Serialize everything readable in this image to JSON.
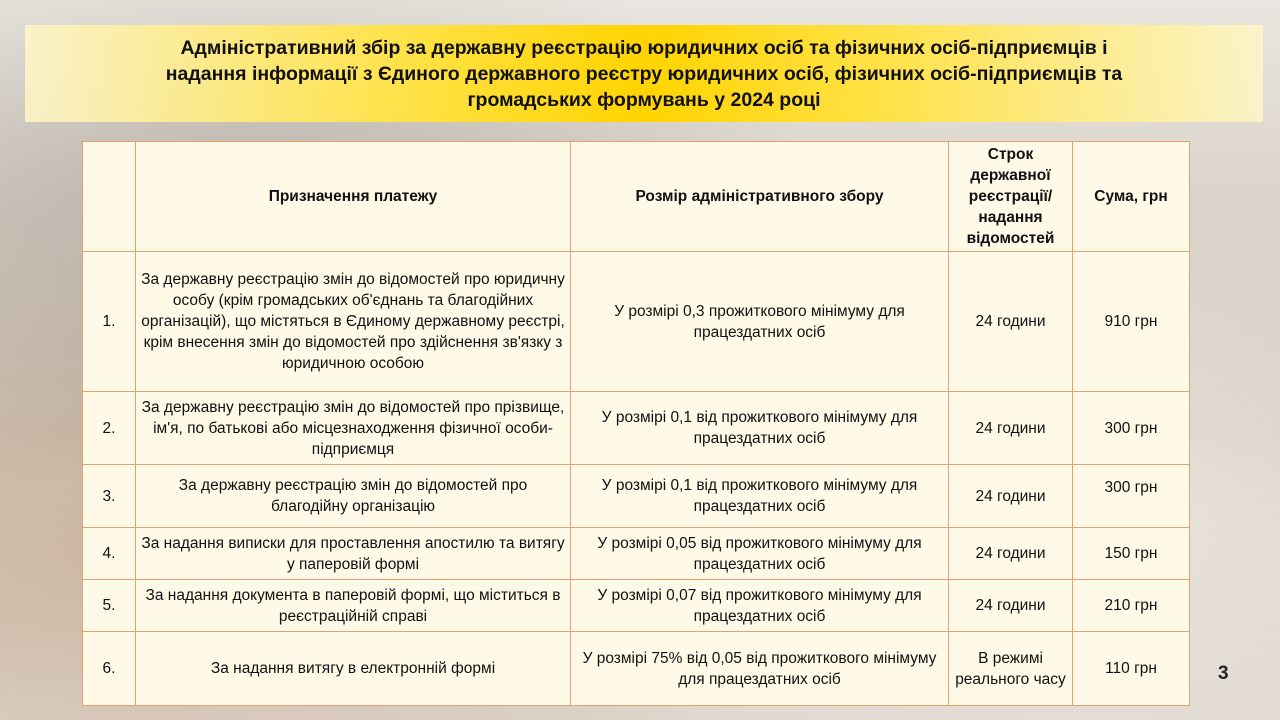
{
  "title_lines": [
    "Адміністративний збір за державну реєстрацію юридичних осіб та фізичних осіб-підприємців і",
    "надання інформації з Єдиного державного реєстру юридичних осіб, фізичних осіб-підприємців та",
    "громадських формувань у  2024 році"
  ],
  "table": {
    "headers": [
      "",
      "Призначення платежу",
      "Розмір адміністративного збору",
      "Строк державної реєстрації/ надання відомостей",
      "Сума, грн"
    ],
    "rows": [
      [
        "1.",
        "За державну реєстрацію змін до відомостей про юридичну особу (крім громадських об'єднань та благодійних організацій), що містяться в Єдиному державному реєстрі, крім внесення змін до відомостей про здійснення зв'язку з юридичною особою",
        "У розмірі 0,3 прожиткового мінімуму для працездатних осіб",
        "24 години",
        "910 грн"
      ],
      [
        "2.",
        "За державну реєстрацію змін до відомостей про прізвище, ім'я, по батькові або місцезнаходження фізичної особи-підприємця",
        "У розмірі 0,1 від прожиткового мінімуму для працездатних осіб",
        "24 години",
        "300 грн"
      ],
      [
        "3.",
        "За державну реєстрацію змін до відомостей про благодійну організацію",
        "У розмірі 0,1 від прожиткового мінімуму для працездатних осіб",
        "24 години",
        "300 грн"
      ],
      [
        "4.",
        "За надання виписки для проставлення апостилю та витягу у паперовій формі",
        "У розмірі 0,05 від прожиткового мінімуму для працездатних осіб",
        "24 години",
        "150 грн"
      ],
      [
        "5.",
        "За надання документа в паперовій формі, що міститься в реєстраційній справі",
        "У розмірі 0,07 від прожиткового мінімуму для працездатних осіб",
        "24 години",
        "210 грн"
      ],
      [
        "6.",
        "За надання витягу в електронній формі",
        "У розмірі 75% від 0,05 від прожиткового  мінімуму для працездатних осіб",
        "В режимі реального часу",
        "110 грн"
      ]
    ]
  },
  "page_number": "3",
  "colors": {
    "banner": "#ffd400",
    "table_bg": "#fff9e8",
    "border": "#e0a46e"
  }
}
